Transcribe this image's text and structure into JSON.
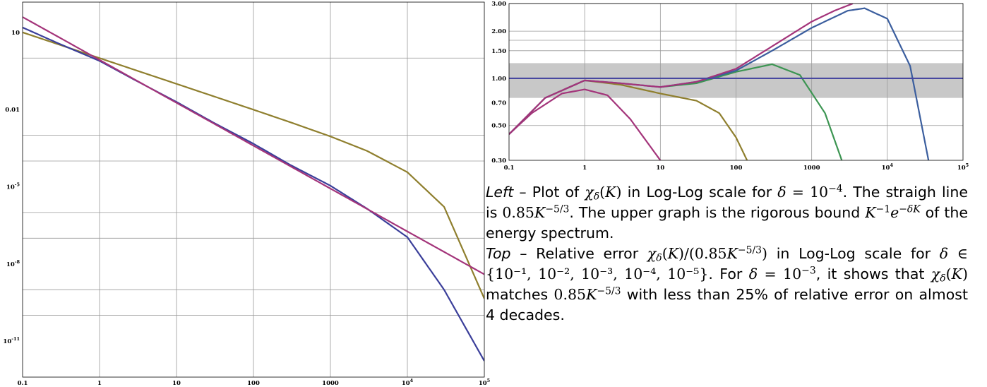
{
  "chart_data": [
    {
      "id": "left",
      "type": "line",
      "xscale": "log",
      "yscale": "log",
      "xlim": [
        0.1,
        100000
      ],
      "ylim": [
        4e-13,
        150
      ],
      "grid": true,
      "xticks": [
        "0.1",
        "1",
        "10",
        "100",
        "1000",
        "10^4",
        "10^5"
      ],
      "yticks": [
        "10",
        "0.01",
        "10^-5",
        "10^-8",
        "10^-11"
      ],
      "series": [
        {
          "color": "#8f7f2e",
          "x": [
            0.1,
            0.3,
            1,
            3,
            10,
            30,
            100,
            300,
            1000,
            3000,
            10000,
            30000,
            100000
          ],
          "y": [
            10,
            3.333,
            0.999,
            0.333,
            0.0999,
            0.0332,
            0.0099,
            0.00323,
            0.000905,
            0.000247,
            3.68e-05,
            1.66e-06,
            4.5e-10
          ]
        },
        {
          "color": "#3b3f9a",
          "x": [
            0.1,
            0.3,
            1,
            3,
            10,
            30,
            100,
            300,
            1000,
            3000,
            10000,
            30000,
            100000
          ],
          "y": [
            15.5,
            3.6,
            0.78,
            0.132,
            0.0198,
            0.00315,
            0.00047,
            7.1e-05,
            1.1e-05,
            1.4e-06,
            1.1e-07,
            1e-09,
            1.7e-12
          ]
        },
        {
          "color": "#a3347a",
          "x": [
            0.1,
            0.3,
            1,
            3,
            10,
            30,
            100,
            300,
            1000,
            3000,
            10000,
            30000,
            100000
          ],
          "y": [
            39.4,
            6.36,
            0.85,
            0.136,
            0.0183,
            0.00295,
            0.000395,
            6.33e-05,
            8.5e-06,
            1.37e-06,
            1.83e-07,
            2.95e-08,
            3.95e-09
          ]
        }
      ]
    },
    {
      "id": "top",
      "type": "line",
      "xscale": "log",
      "yscale": "log",
      "xlim": [
        0.1,
        100000
      ],
      "ylim": [
        0.3,
        3.0
      ],
      "grid": true,
      "band": [
        0.75,
        1.25
      ],
      "reference_line": 1.0,
      "xticks": [
        "0.1",
        "1",
        "10",
        "100",
        "1000",
        "10^4",
        "10^5"
      ],
      "yticks": [
        "3.00",
        "2.00",
        "1.50",
        "1.00",
        "0.70",
        "0.50",
        "0.30"
      ],
      "series": [
        {
          "color": "#a3347a",
          "x": [
            0.1,
            0.2,
            0.5,
            1,
            2,
            4,
            7,
            10
          ],
          "y": [
            0.44,
            0.6,
            0.8,
            0.85,
            0.78,
            0.55,
            0.38,
            0.3
          ]
        },
        {
          "color": "#8f7f2e",
          "x": [
            0.1,
            0.3,
            1,
            3,
            10,
            30,
            60,
            100,
            140
          ],
          "y": [
            0.44,
            0.75,
            0.97,
            0.91,
            0.8,
            0.72,
            0.6,
            0.42,
            0.3
          ]
        },
        {
          "color": "#3c9552",
          "x": [
            10,
            30,
            100,
            300,
            700,
            1500,
            2500
          ],
          "y": [
            0.88,
            0.93,
            1.1,
            1.23,
            1.05,
            0.6,
            0.3
          ]
        },
        {
          "color": "#3b5e9e",
          "x": [
            0.1,
            0.3,
            1,
            3,
            10,
            30,
            100,
            300,
            1000,
            3000,
            5000,
            10000,
            20000,
            35000
          ],
          "y": [
            0.44,
            0.75,
            0.97,
            0.93,
            0.88,
            0.95,
            1.12,
            1.5,
            2.1,
            2.7,
            2.8,
            2.4,
            1.2,
            0.3
          ]
        },
        {
          "color": "#a3347a",
          "x": [
            0.1,
            0.3,
            1,
            3,
            10,
            30,
            100,
            300,
            1000,
            2000,
            3500
          ],
          "y": [
            0.44,
            0.75,
            0.97,
            0.93,
            0.88,
            0.95,
            1.15,
            1.6,
            2.3,
            2.7,
            3.0
          ]
        },
        {
          "color": "#4848a0",
          "x": [
            0.1,
            100000
          ],
          "y": [
            1.0,
            1.0
          ]
        }
      ]
    }
  ],
  "caption": {
    "left_label": "Left",
    "top_label": "Top",
    "dash": " – ",
    "t_plot_of": "Plot of ",
    "t_chi": "χ",
    "t_delta": "δ",
    "t_K": "K",
    "t_in_loglog_for": " in Log-Log scale for ",
    "t_eq": " = ",
    "t_10": "10",
    "t_m4": "−4",
    "t_straight": "The straigh line is ",
    "t_085": "0.85",
    "t_m53": "−5/3",
    "t_upper": ". The upper graph is the rigorous bound ",
    "t_m1": "−1",
    "t_e": "e",
    "t_mdK": "−δK",
    "t_energy": " of the energy spectrum.",
    "t_relerr": "Relative error ",
    "t_in_loglog": " in Log-Log scale for ",
    "t_in": " ∈ ",
    "t_set": "{10⁻¹, 10⁻², 10⁻³, 10⁻⁴, 10⁻⁵}",
    "t_for": ". For ",
    "t_m3": "−3",
    "t_shows": ", it shows that ",
    "t_matches": " matches ",
    "t_less": "with less than 25% of relative error on almost 4 decades."
  }
}
